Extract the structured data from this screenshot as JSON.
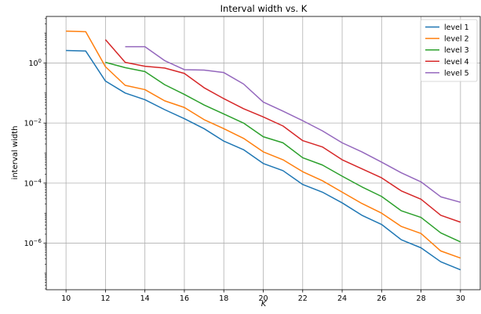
{
  "chart_data": {
    "type": "line",
    "title": "Interval width vs. K",
    "xlabel": "K",
    "ylabel": "interval width",
    "xlim": [
      9.0,
      31.0
    ],
    "ylim_log10": [
      -7.55,
      1.55
    ],
    "yscale": "log",
    "grid": true,
    "legend_position": "top-right",
    "x_ticks": [
      10,
      12,
      14,
      16,
      18,
      20,
      22,
      24,
      26,
      28,
      30
    ],
    "y_ticks": [
      {
        "exp": 0,
        "label": "10",
        "sup": "0"
      },
      {
        "exp": -2,
        "label": "10",
        "sup": "−2"
      },
      {
        "exp": -4,
        "label": "10",
        "sup": "−4"
      },
      {
        "exp": -6,
        "label": "10",
        "sup": "−6"
      }
    ],
    "series": [
      {
        "name": "level 1",
        "color": "#1f77b4",
        "x": [
          10,
          11,
          12,
          13,
          14,
          15,
          16,
          17,
          18,
          19,
          20,
          21,
          22,
          23,
          24,
          25,
          26,
          27,
          28,
          29,
          30
        ],
        "y": [
          2.6,
          2.5,
          0.25,
          0.1,
          0.06,
          0.028,
          0.014,
          0.0065,
          0.0025,
          0.0013,
          0.00045,
          0.00026,
          9e-05,
          5e-05,
          2.2e-05,
          8.5e-06,
          4.2e-06,
          1.3e-06,
          7e-07,
          2.4e-07,
          1.3e-07
        ]
      },
      {
        "name": "level 2",
        "color": "#ff7f0e",
        "x": [
          10,
          11,
          12,
          13,
          14,
          15,
          16,
          17,
          18,
          19,
          20,
          21,
          22,
          23,
          24,
          25,
          26,
          27,
          28,
          29,
          30
        ],
        "y": [
          11.5,
          11.0,
          0.75,
          0.18,
          0.13,
          0.055,
          0.033,
          0.013,
          0.0065,
          0.0031,
          0.0011,
          0.0006,
          0.00024,
          0.00012,
          5e-05,
          2.1e-05,
          1e-05,
          3.6e-06,
          2.1e-06,
          5.5e-07,
          3.2e-07
        ]
      },
      {
        "name": "level 3",
        "color": "#2ca02c",
        "x": [
          12,
          13,
          14,
          15,
          16,
          17,
          18,
          19,
          20,
          21,
          22,
          23,
          24,
          25,
          26,
          27,
          28,
          29,
          30
        ],
        "y": [
          1.05,
          0.7,
          0.52,
          0.19,
          0.09,
          0.04,
          0.02,
          0.01,
          0.0035,
          0.0022,
          0.0007,
          0.0004,
          0.00017,
          7.5e-05,
          3.6e-05,
          1.2e-05,
          7.2e-06,
          2.2e-06,
          1.1e-06
        ]
      },
      {
        "name": "level 4",
        "color": "#d62728",
        "x": [
          12,
          13,
          14,
          15,
          16,
          17,
          18,
          19,
          20,
          21,
          22,
          23,
          24,
          25,
          26,
          27,
          28,
          29,
          30
        ],
        "y": [
          6.0,
          1.05,
          0.78,
          0.68,
          0.45,
          0.15,
          0.065,
          0.03,
          0.016,
          0.008,
          0.0026,
          0.0016,
          0.0006,
          0.0003,
          0.00015,
          5.5e-05,
          2.9e-05,
          8.5e-06,
          5e-06
        ]
      },
      {
        "name": "level 5",
        "color": "#9467bd",
        "x": [
          13,
          14,
          15,
          16,
          17,
          18,
          19,
          20,
          21,
          22,
          23,
          24,
          25,
          26,
          27,
          28,
          29,
          30
        ],
        "y": [
          3.5,
          3.5,
          1.2,
          0.6,
          0.58,
          0.48,
          0.2,
          0.05,
          0.025,
          0.012,
          0.0055,
          0.0022,
          0.0011,
          0.0005,
          0.00022,
          0.00011,
          3.5e-05,
          2.3e-05
        ]
      }
    ]
  }
}
